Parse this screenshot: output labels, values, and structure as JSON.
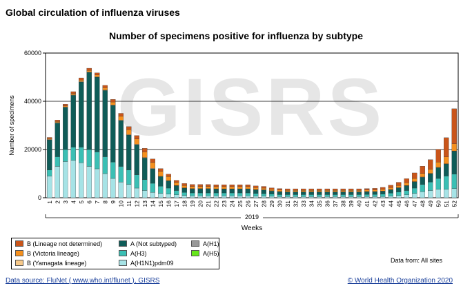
{
  "page": {
    "title": "Global circulation of influenza viruses"
  },
  "watermark": {
    "text": "GISRS"
  },
  "data_from": "Data from: All sites",
  "footer": {
    "source_label": "Data source: FluNet ( www.who.int/flunet ), GISRS",
    "copyright": "© World Health Organization 2020"
  },
  "chart_data": {
    "type": "bar",
    "stacked": true,
    "title": "Number of specimens positive for influenza by subtype",
    "xlabel": "Weeks",
    "ylabel": "Number of specimens",
    "year_label": "2019",
    "ylim": [
      0,
      60000
    ],
    "yticks": [
      0,
      20000,
      40000,
      60000
    ],
    "grid": true,
    "legend_position": "bottom-left",
    "categories": [
      "1",
      "2",
      "3",
      "4",
      "5",
      "6",
      "7",
      "8",
      "9",
      "10",
      "11",
      "12",
      "13",
      "14",
      "15",
      "16",
      "17",
      "18",
      "19",
      "20",
      "21",
      "22",
      "23",
      "24",
      "25",
      "26",
      "27",
      "28",
      "29",
      "30",
      "31",
      "32",
      "33",
      "34",
      "35",
      "36",
      "37",
      "38",
      "39",
      "40",
      "41",
      "42",
      "43",
      "44",
      "45",
      "46",
      "47",
      "48",
      "49",
      "50",
      "51",
      "52"
    ],
    "series": [
      {
        "name": "A(H1N1)pdm09",
        "color": "#a6e3e6",
        "values": [
          9000,
          13000,
          15000,
          15500,
          14500,
          13000,
          12000,
          10000,
          8000,
          6500,
          5500,
          4000,
          3000,
          2200,
          1800,
          1500,
          1200,
          900,
          800,
          800,
          800,
          800,
          800,
          800,
          800,
          800,
          700,
          700,
          600,
          500,
          500,
          500,
          500,
          500,
          500,
          500,
          500,
          500,
          500,
          500,
          500,
          500,
          500,
          700,
          900,
          1200,
          1800,
          2500,
          3000,
          3500,
          3500,
          3800
        ]
      },
      {
        "name": "A(H3)",
        "color": "#3bbfb4",
        "values": [
          2500,
          4000,
          5000,
          5500,
          6500,
          7000,
          7000,
          7000,
          6800,
          6500,
          6000,
          5500,
          4500,
          3800,
          3000,
          2500,
          1800,
          1300,
          1200,
          1200,
          1200,
          1200,
          1200,
          1200,
          1200,
          1200,
          1100,
          1000,
          900,
          800,
          800,
          800,
          800,
          800,
          800,
          800,
          800,
          800,
          800,
          800,
          900,
          900,
          1000,
          1200,
          1500,
          1800,
          2200,
          3000,
          3500,
          4500,
          5500,
          6000
        ]
      },
      {
        "name": "A(H5)",
        "color": "#66e61a",
        "values": [
          0,
          0,
          0,
          0,
          0,
          0,
          0,
          0,
          0,
          0,
          0,
          0,
          0,
          0,
          0,
          0,
          0,
          0,
          0,
          0,
          0,
          0,
          0,
          0,
          0,
          0,
          0,
          0,
          0,
          0,
          0,
          0,
          0,
          0,
          0,
          0,
          0,
          0,
          0,
          0,
          0,
          0,
          0,
          0,
          0,
          0,
          0,
          0,
          0,
          0,
          0,
          0
        ]
      },
      {
        "name": "A(H1)",
        "color": "#999999",
        "values": [
          0,
          0,
          0,
          0,
          0,
          0,
          0,
          0,
          0,
          0,
          0,
          0,
          0,
          0,
          0,
          0,
          0,
          0,
          0,
          0,
          0,
          0,
          0,
          0,
          0,
          0,
          0,
          0,
          0,
          0,
          0,
          0,
          0,
          0,
          0,
          0,
          0,
          0,
          0,
          0,
          0,
          0,
          0,
          0,
          0,
          0,
          0,
          0,
          0,
          0,
          0,
          0
        ]
      },
      {
        "name": "A (Not subtyped)",
        "color": "#0f5c58",
        "values": [
          12500,
          14000,
          17500,
          21500,
          27000,
          32000,
          31000,
          27500,
          23500,
          19000,
          14500,
          12500,
          9000,
          6000,
          4000,
          3000,
          2000,
          1800,
          1700,
          1700,
          1700,
          1600,
          1600,
          1600,
          1600,
          1600,
          1500,
          1500,
          1300,
          1200,
          1100,
          1100,
          1100,
          1100,
          1100,
          1100,
          1100,
          1100,
          1100,
          1100,
          1100,
          1100,
          1200,
          1400,
          1700,
          2000,
          2600,
          3000,
          3500,
          4500,
          5000,
          9500
        ]
      },
      {
        "name": "B (Yamagata lineage)",
        "color": "#f7c98a",
        "values": [
          200,
          200,
          200,
          200,
          200,
          200,
          200,
          200,
          200,
          200,
          200,
          200,
          200,
          200,
          100,
          100,
          100,
          100,
          100,
          100,
          100,
          100,
          100,
          100,
          100,
          100,
          100,
          100,
          100,
          100,
          100,
          100,
          100,
          100,
          100,
          100,
          100,
          100,
          100,
          100,
          100,
          100,
          100,
          100,
          100,
          100,
          100,
          100,
          100,
          100,
          100,
          100
        ]
      },
      {
        "name": "B (Victoria lineage)",
        "color": "#f5901e",
        "values": [
          300,
          400,
          400,
          500,
          600,
          600,
          700,
          900,
          1200,
          1600,
          2000,
          2200,
          2300,
          2400,
          2000,
          1700,
          1300,
          1000,
          900,
          900,
          900,
          900,
          900,
          900,
          900,
          900,
          800,
          700,
          600,
          600,
          600,
          600,
          600,
          600,
          600,
          600,
          600,
          600,
          600,
          600,
          600,
          600,
          700,
          800,
          900,
          1100,
          1300,
          1500,
          1700,
          2200,
          2800,
          3000
        ]
      },
      {
        "name": "B (Lineage not determined)",
        "color": "#c9551a",
        "values": [
          500,
          600,
          700,
          800,
          900,
          900,
          900,
          1000,
          1100,
          1200,
          1300,
          1400,
          1500,
          1500,
          1200,
          1000,
          800,
          800,
          800,
          800,
          800,
          800,
          800,
          800,
          800,
          800,
          700,
          700,
          600,
          600,
          600,
          600,
          600,
          600,
          600,
          600,
          600,
          600,
          600,
          600,
          600,
          700,
          800,
          1000,
          1300,
          1700,
          2300,
          3000,
          4000,
          5300,
          8000,
          14500
        ]
      }
    ]
  }
}
